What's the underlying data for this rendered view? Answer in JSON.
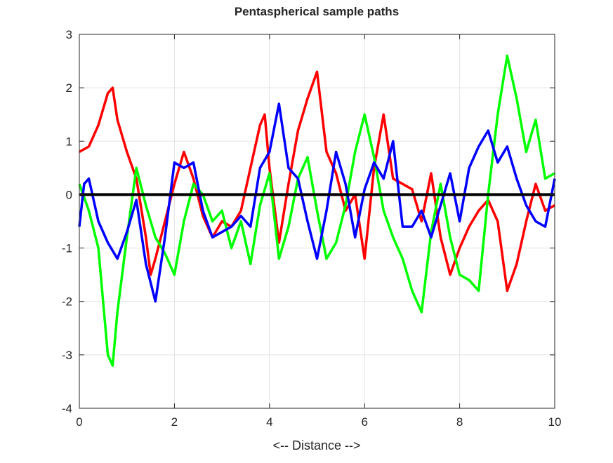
{
  "chart_data": {
    "type": "line",
    "title": "Pentaspherical sample paths",
    "xlabel": "<-- Distance -->",
    "ylabel": "",
    "xlim": [
      0,
      10
    ],
    "ylim": [
      -4,
      3
    ],
    "grid": true,
    "xticks": [
      "0",
      "2",
      "4",
      "6",
      "8",
      "10"
    ],
    "yticks": [
      "-4",
      "-3",
      "-2",
      "-1",
      "0",
      "1",
      "2",
      "3"
    ],
    "xtick_values": [
      0,
      2,
      4,
      6,
      8,
      10
    ],
    "ytick_values": [
      -4,
      -3,
      -2,
      -1,
      0,
      1,
      2,
      3
    ],
    "series": [
      {
        "name": "red path",
        "color": "#ff0000",
        "x": [
          0,
          0.2,
          0.4,
          0.6,
          0.7,
          0.8,
          1.0,
          1.2,
          1.4,
          1.5,
          1.6,
          1.8,
          2.0,
          2.2,
          2.4,
          2.6,
          2.8,
          3.0,
          3.2,
          3.4,
          3.6,
          3.8,
          3.9,
          4.0,
          4.2,
          4.4,
          4.6,
          4.8,
          5.0,
          5.2,
          5.4,
          5.6,
          5.8,
          6.0,
          6.2,
          6.4,
          6.6,
          6.8,
          7.0,
          7.2,
          7.4,
          7.6,
          7.8,
          8.0,
          8.2,
          8.4,
          8.6,
          8.8,
          9.0,
          9.2,
          9.4,
          9.6,
          9.8,
          10
        ],
        "y": [
          0.8,
          0.9,
          1.3,
          1.9,
          2.0,
          1.4,
          0.8,
          0.3,
          -0.8,
          -1.5,
          -1.2,
          -0.5,
          0.2,
          0.8,
          0.3,
          -0.4,
          -0.8,
          -0.5,
          -0.6,
          -0.3,
          0.5,
          1.3,
          1.5,
          0.5,
          -0.9,
          0.2,
          1.2,
          1.8,
          2.3,
          0.8,
          0.4,
          -0.3,
          0.0,
          -1.2,
          0.5,
          1.5,
          0.3,
          0.2,
          0.1,
          -0.5,
          0.4,
          -0.8,
          -1.5,
          -1.0,
          -0.6,
          -0.3,
          -0.1,
          -0.5,
          -1.8,
          -1.3,
          -0.5,
          0.2,
          -0.3,
          -0.2
        ]
      },
      {
        "name": "green path",
        "color": "#00ff00",
        "x": [
          0,
          0.2,
          0.4,
          0.5,
          0.6,
          0.7,
          0.8,
          1.0,
          1.2,
          1.4,
          1.6,
          1.8,
          2.0,
          2.2,
          2.4,
          2.6,
          2.8,
          3.0,
          3.2,
          3.4,
          3.6,
          3.8,
          4.0,
          4.2,
          4.4,
          4.6,
          4.8,
          5.0,
          5.2,
          5.4,
          5.6,
          5.8,
          6.0,
          6.2,
          6.4,
          6.6,
          6.8,
          7.0,
          7.2,
          7.4,
          7.6,
          7.8,
          8.0,
          8.2,
          8.4,
          8.6,
          8.8,
          9.0,
          9.2,
          9.4,
          9.6,
          9.8,
          10
        ],
        "y": [
          0.2,
          -0.3,
          -1.0,
          -2.0,
          -3.0,
          -3.2,
          -2.2,
          -0.8,
          0.5,
          -0.2,
          -0.8,
          -1.1,
          -1.5,
          -0.5,
          0.2,
          0.0,
          -0.5,
          -0.3,
          -1.0,
          -0.5,
          -1.3,
          -0.2,
          0.4,
          -1.2,
          -0.6,
          0.3,
          0.7,
          -0.3,
          -1.2,
          -0.9,
          -0.2,
          0.8,
          1.5,
          0.7,
          -0.3,
          -0.8,
          -1.2,
          -1.8,
          -2.2,
          -0.7,
          0.2,
          -0.8,
          -1.5,
          -1.6,
          -1.8,
          0.0,
          1.5,
          2.6,
          1.8,
          0.8,
          1.4,
          0.3,
          0.4
        ]
      },
      {
        "name": "blue path",
        "color": "#0000ff",
        "x": [
          0,
          0.1,
          0.2,
          0.4,
          0.6,
          0.8,
          1.0,
          1.2,
          1.4,
          1.6,
          1.8,
          2.0,
          2.2,
          2.4,
          2.6,
          2.8,
          3.0,
          3.2,
          3.4,
          3.6,
          3.8,
          4.0,
          4.2,
          4.4,
          4.6,
          4.8,
          5.0,
          5.2,
          5.4,
          5.6,
          5.8,
          6.0,
          6.2,
          6.4,
          6.6,
          6.8,
          7.0,
          7.2,
          7.4,
          7.6,
          7.8,
          8.0,
          8.2,
          8.4,
          8.6,
          8.8,
          9.0,
          9.2,
          9.4,
          9.6,
          9.8,
          10
        ],
        "y": [
          -0.6,
          0.2,
          0.3,
          -0.5,
          -0.9,
          -1.2,
          -0.7,
          -0.1,
          -1.3,
          -2.0,
          -0.8,
          0.6,
          0.5,
          0.6,
          -0.3,
          -0.8,
          -0.7,
          -0.6,
          -0.4,
          -0.6,
          0.5,
          0.8,
          1.7,
          0.5,
          0.3,
          -0.5,
          -1.2,
          -0.3,
          0.8,
          0.2,
          -0.8,
          0.1,
          0.6,
          0.3,
          1.0,
          -0.6,
          -0.6,
          -0.3,
          -0.8,
          -0.2,
          0.4,
          -0.5,
          0.5,
          0.9,
          1.2,
          0.6,
          0.9,
          0.3,
          -0.2,
          -0.5,
          -0.6,
          0.3
        ]
      },
      {
        "name": "mean line",
        "color": "#000000",
        "x": [
          0,
          10
        ],
        "y": [
          0,
          0
        ]
      }
    ]
  }
}
